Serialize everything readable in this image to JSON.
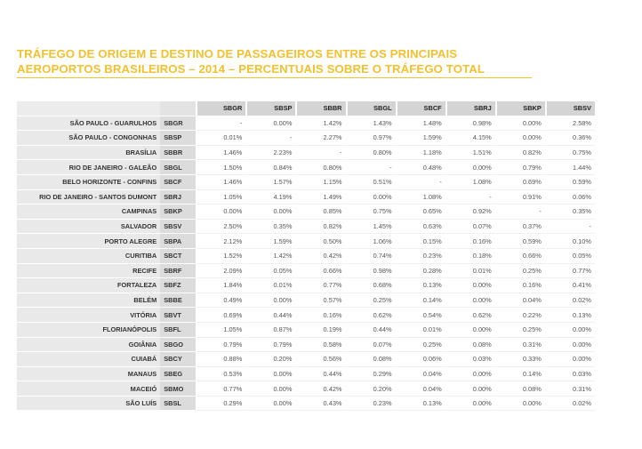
{
  "title": {
    "line1": "TRÁFEGO DE ORIGEM E DESTINO DE PASSAGEIROS ENTRE OS PRINCIPAIS",
    "line2": "AEROPORTOS BRASILEIROS – 2014 – PERCENTUAIS SOBRE O TRÁFEGO TOTAL"
  },
  "colors": {
    "accent": "#f2c12e",
    "header_bg": "#d4d4d4",
    "row_label_bg": "#e9e9e9"
  },
  "columns": [
    "SBGR",
    "SBSP",
    "SBBR",
    "SBGL",
    "SBCF",
    "SBRJ",
    "SBKP",
    "SBSV"
  ],
  "rows": [
    {
      "city": "SÃO PAULO - GUARULHOS",
      "code": "SBGR",
      "values": [
        "-",
        "0.00%",
        "1.42%",
        "1.43%",
        "1.48%",
        "0.98%",
        "0.00%",
        "2.58%"
      ]
    },
    {
      "city": "SÃO PAULO - CONGONHAS",
      "code": "SBSP",
      "values": [
        "0.01%",
        "-",
        "2.27%",
        "0.97%",
        "1.59%",
        "4.15%",
        "0.00%",
        "0.36%"
      ]
    },
    {
      "city": "BRASÍLIA",
      "code": "SBBR",
      "values": [
        "1.46%",
        "2.23%",
        "-",
        "0.80%",
        "1.18%",
        "1.51%",
        "0.82%",
        "0.75%"
      ]
    },
    {
      "city": "RIO DE JANEIRO - GALEÃO",
      "code": "SBGL",
      "values": [
        "1.50%",
        "0.84%",
        "0.80%",
        "-",
        "0.48%",
        "0.00%",
        "0.79%",
        "1.44%"
      ]
    },
    {
      "city": "BELO HORIZONTE - CONFINS",
      "code": "SBCF",
      "values": [
        "1.46%",
        "1.57%",
        "1.15%",
        "0.51%",
        "-",
        "1.08%",
        "0.69%",
        "0.59%"
      ]
    },
    {
      "city": "RIO DE JANEIRO - SANTOS DUMONT",
      "code": "SBRJ",
      "values": [
        "1.05%",
        "4.19%",
        "1.49%",
        "0.00%",
        "1.08%",
        "-",
        "0.91%",
        "0.06%"
      ]
    },
    {
      "city": "CAMPINAS",
      "code": "SBKP",
      "values": [
        "0.00%",
        "0.00%",
        "0.85%",
        "0.75%",
        "0.65%",
        "0.92%",
        "-",
        "0.35%"
      ]
    },
    {
      "city": "SALVADOR",
      "code": "SBSV",
      "values": [
        "2.50%",
        "0.35%",
        "0.82%",
        "1.45%",
        "0.63%",
        "0.07%",
        "0.37%",
        "-"
      ]
    },
    {
      "city": "PORTO ALEGRE",
      "code": "SBPA",
      "values": [
        "2.12%",
        "1.59%",
        "0.50%",
        "1.06%",
        "0.15%",
        "0.16%",
        "0.59%",
        "0.10%"
      ]
    },
    {
      "city": "CURITIBA",
      "code": "SBCT",
      "values": [
        "1.52%",
        "1.42%",
        "0.42%",
        "0.74%",
        "0.23%",
        "0.18%",
        "0.66%",
        "0.05%"
      ]
    },
    {
      "city": "RECIFE",
      "code": "SBRF",
      "values": [
        "2.09%",
        "0.05%",
        "0.66%",
        "0.98%",
        "0.28%",
        "0.01%",
        "0.25%",
        "0.77%"
      ]
    },
    {
      "city": "FORTALEZA",
      "code": "SBFZ",
      "values": [
        "1.84%",
        "0.01%",
        "0.77%",
        "0.68%",
        "0.13%",
        "0.00%",
        "0.16%",
        "0.41%"
      ]
    },
    {
      "city": "BELÉM",
      "code": "SBBE",
      "values": [
        "0.49%",
        "0.00%",
        "0.57%",
        "0.25%",
        "0.14%",
        "0.00%",
        "0.04%",
        "0.02%"
      ]
    },
    {
      "city": "VITÓRIA",
      "code": "SBVT",
      "values": [
        "0.69%",
        "0.44%",
        "0.16%",
        "0.62%",
        "0.54%",
        "0.62%",
        "0.22%",
        "0.13%"
      ]
    },
    {
      "city": "FLORIANÓPOLIS",
      "code": "SBFL",
      "values": [
        "1.05%",
        "0.87%",
        "0.19%",
        "0.44%",
        "0.01%",
        "0.00%",
        "0.25%",
        "0.00%"
      ]
    },
    {
      "city": "GOIÂNIA",
      "code": "SBGO",
      "values": [
        "0.79%",
        "0.79%",
        "0.58%",
        "0.07%",
        "0.25%",
        "0.08%",
        "0.31%",
        "0.00%"
      ]
    },
    {
      "city": "CUIABÁ",
      "code": "SBCY",
      "values": [
        "0.88%",
        "0.20%",
        "0.56%",
        "0.08%",
        "0.06%",
        "0.03%",
        "0.33%",
        "0.00%"
      ]
    },
    {
      "city": "MANAUS",
      "code": "SBEG",
      "values": [
        "0.53%",
        "0.00%",
        "0.44%",
        "0.29%",
        "0.04%",
        "0.00%",
        "0.14%",
        "0.03%"
      ]
    },
    {
      "city": "MACEIÓ",
      "code": "SBMO",
      "values": [
        "0.77%",
        "0.00%",
        "0.42%",
        "0.20%",
        "0.04%",
        "0.00%",
        "0.08%",
        "0.31%"
      ]
    },
    {
      "city": "SÃO LUÍS",
      "code": "SBSL",
      "values": [
        "0.29%",
        "0.00%",
        "0.43%",
        "0.23%",
        "0.13%",
        "0.00%",
        "0.00%",
        "0.02%"
      ]
    }
  ]
}
